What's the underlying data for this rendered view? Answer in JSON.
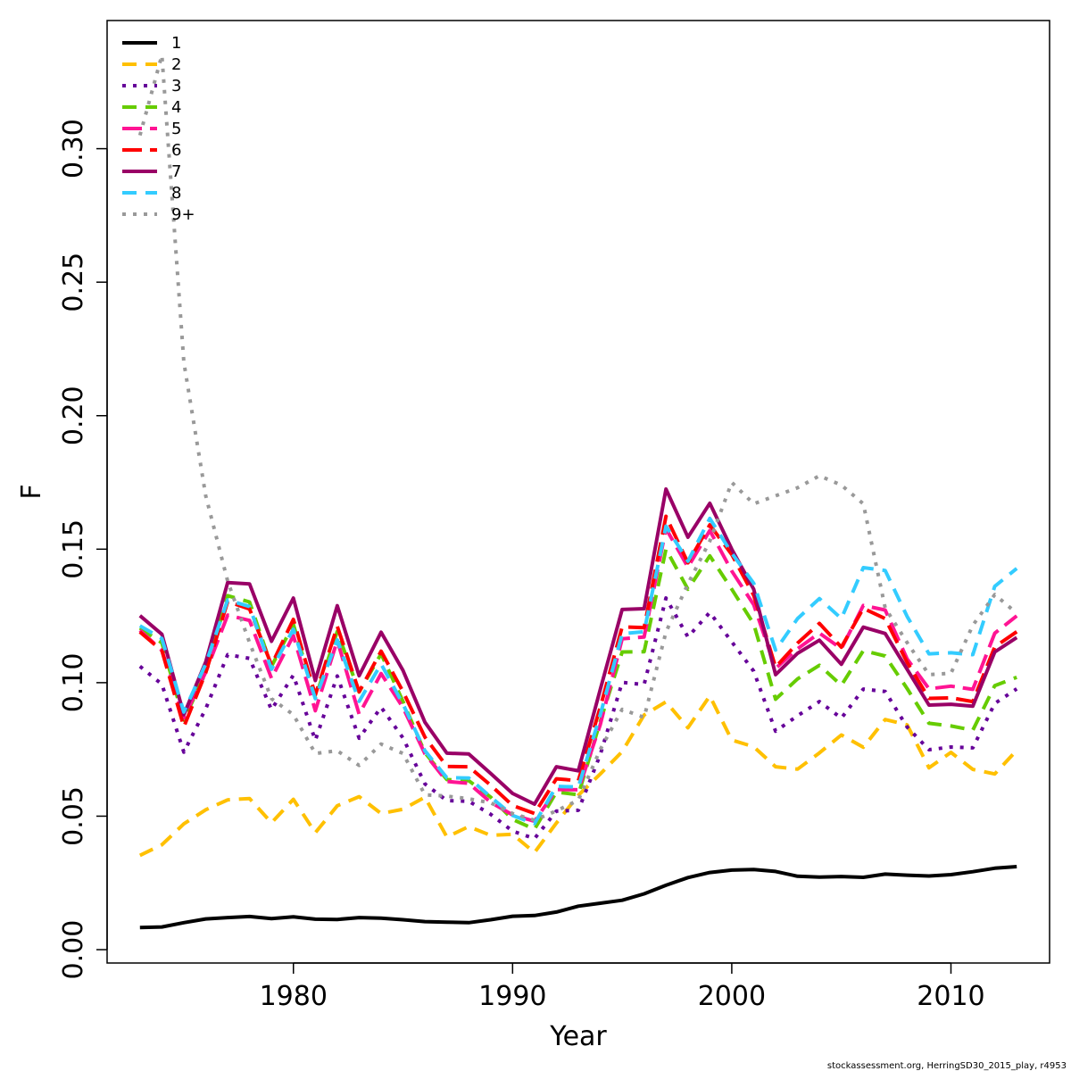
{
  "chart_data": {
    "type": "line",
    "xlabel": "Year",
    "ylabel": "F",
    "xlim": [
      1971.5,
      2014.5
    ],
    "ylim": [
      -0.005,
      0.348
    ],
    "x_ticks": [
      1980,
      1990,
      2000,
      2010
    ],
    "y_ticks": [
      0.0,
      0.05,
      0.1,
      0.15,
      0.2,
      0.25,
      0.3
    ],
    "y_tick_labels": [
      "0.00",
      "0.05",
      "0.10",
      "0.15",
      "0.20",
      "0.25",
      "0.30"
    ],
    "grid": false,
    "legend_position": "top-left",
    "caption": "stockassessment.org, HerringSD30_2015_play, r4953",
    "x": [
      1973,
      1974,
      1975,
      1976,
      1977,
      1978,
      1979,
      1980,
      1981,
      1982,
      1983,
      1984,
      1985,
      1986,
      1987,
      1988,
      1989,
      1990,
      1991,
      1992,
      1993,
      1994,
      1995,
      1996,
      1997,
      1998,
      1999,
      2000,
      2001,
      2002,
      2003,
      2004,
      2005,
      2006,
      2007,
      2008,
      2009,
      2010,
      2011,
      2012,
      2013
    ],
    "series": [
      {
        "name": "1",
        "color": "#000000",
        "dash": "solid",
        "width": 4,
        "values": [
          0.0083,
          0.0085,
          0.0101,
          0.0115,
          0.012,
          0.0124,
          0.0116,
          0.0123,
          0.0114,
          0.0113,
          0.012,
          0.0118,
          0.0112,
          0.0105,
          0.0103,
          0.0101,
          0.0112,
          0.0125,
          0.0128,
          0.0141,
          0.0163,
          0.0174,
          0.0185,
          0.0209,
          0.0241,
          0.027,
          0.0289,
          0.0298,
          0.03,
          0.0293,
          0.0275,
          0.0272,
          0.0274,
          0.0271,
          0.0283,
          0.0279,
          0.0276,
          0.0281,
          0.0292,
          0.0305,
          0.0311
        ]
      },
      {
        "name": "2",
        "color": "#FFC000",
        "dash": "dashed",
        "width": 4,
        "values": [
          0.0353,
          0.0393,
          0.0471,
          0.0524,
          0.0561,
          0.0566,
          0.0475,
          0.0563,
          0.0438,
          0.0539,
          0.0573,
          0.051,
          0.0526,
          0.0571,
          0.0422,
          0.0461,
          0.0428,
          0.0432,
          0.0364,
          0.0474,
          0.0578,
          0.0658,
          0.0742,
          0.0879,
          0.0928,
          0.0831,
          0.095,
          0.0785,
          0.076,
          0.0685,
          0.0676,
          0.0737,
          0.0804,
          0.0758,
          0.0862,
          0.0842,
          0.0681,
          0.0739,
          0.0675,
          0.0658,
          0.0747
        ]
      },
      {
        "name": "3",
        "color": "#660099",
        "dash": "dotted",
        "width": 4,
        "values": [
          0.1061,
          0.0994,
          0.074,
          0.0902,
          0.1105,
          0.1091,
          0.0899,
          0.1028,
          0.0784,
          0.1025,
          0.0792,
          0.0908,
          0.0793,
          0.0621,
          0.0558,
          0.0556,
          0.0507,
          0.0444,
          0.0416,
          0.0519,
          0.0522,
          0.0731,
          0.1001,
          0.0993,
          0.1317,
          0.1171,
          0.1263,
          0.1153,
          0.1043,
          0.0818,
          0.0876,
          0.0929,
          0.0867,
          0.0976,
          0.0967,
          0.0834,
          0.0749,
          0.0759,
          0.0756,
          0.0922,
          0.0977
        ]
      },
      {
        "name": "4",
        "color": "#66CC00",
        "dash": "dashed",
        "width": 4,
        "values": [
          0.1205,
          0.1149,
          0.086,
          0.1038,
          0.1326,
          0.1302,
          0.1061,
          0.1218,
          0.0942,
          0.1192,
          0.0965,
          0.1108,
          0.093,
          0.0738,
          0.0637,
          0.0633,
          0.0571,
          0.0488,
          0.0451,
          0.059,
          0.058,
          0.0855,
          0.1115,
          0.1116,
          0.15,
          0.135,
          0.1475,
          0.135,
          0.122,
          0.0938,
          0.1014,
          0.1065,
          0.099,
          0.112,
          0.11,
          0.0978,
          0.0848,
          0.0838,
          0.0822,
          0.0989,
          0.102
        ]
      },
      {
        "name": "5",
        "color": "#FF1493",
        "dash": "longdash",
        "width": 4,
        "values": [
          0.1196,
          0.1121,
          0.0869,
          0.1039,
          0.1253,
          0.1233,
          0.1016,
          0.1176,
          0.0895,
          0.1158,
          0.0882,
          0.1034,
          0.0907,
          0.0734,
          0.063,
          0.0623,
          0.0552,
          0.0505,
          0.0481,
          0.06,
          0.0599,
          0.0843,
          0.1164,
          0.1171,
          0.1577,
          0.1433,
          0.157,
          0.1418,
          0.1292,
          0.1053,
          0.1127,
          0.1186,
          0.1127,
          0.1289,
          0.1272,
          0.1089,
          0.0977,
          0.0987,
          0.0975,
          0.1185,
          0.125
        ]
      },
      {
        "name": "6",
        "color": "#FF0000",
        "dash": "longdash",
        "width": 4,
        "values": [
          0.119,
          0.112,
          0.0835,
          0.1037,
          0.1304,
          0.1276,
          0.1066,
          0.1237,
          0.0954,
          0.1211,
          0.0966,
          0.1118,
          0.0967,
          0.0796,
          0.0686,
          0.0685,
          0.0616,
          0.054,
          0.051,
          0.064,
          0.0633,
          0.0908,
          0.1209,
          0.1206,
          0.1623,
          0.1449,
          0.1591,
          0.148,
          0.1327,
          0.1058,
          0.1148,
          0.1222,
          0.1133,
          0.1278,
          0.124,
          0.1076,
          0.0941,
          0.0943,
          0.0929,
          0.1134,
          0.1191
        ]
      },
      {
        "name": "7",
        "color": "#990066",
        "dash": "solid",
        "width": 4,
        "values": [
          0.1251,
          0.1181,
          0.088,
          0.1078,
          0.1375,
          0.137,
          0.1155,
          0.1317,
          0.1008,
          0.1288,
          0.1026,
          0.1189,
          0.1046,
          0.0852,
          0.0736,
          0.0733,
          0.066,
          0.0585,
          0.0545,
          0.0685,
          0.067,
          0.0975,
          0.1274,
          0.1277,
          0.1725,
          0.1545,
          0.1672,
          0.15,
          0.135,
          0.103,
          0.111,
          0.1159,
          0.1069,
          0.1208,
          0.1184,
          0.105,
          0.0916,
          0.0919,
          0.0912,
          0.1115,
          0.1169
        ]
      },
      {
        "name": "8",
        "color": "#33CCFF",
        "dash": "dashed",
        "width": 4,
        "values": [
          0.1213,
          0.1165,
          0.089,
          0.107,
          0.131,
          0.1285,
          0.105,
          0.12,
          0.094,
          0.116,
          0.093,
          0.107,
          0.092,
          0.0745,
          0.0644,
          0.0643,
          0.0572,
          0.0503,
          0.0472,
          0.0612,
          0.0609,
          0.088,
          0.1183,
          0.1191,
          0.1586,
          0.1455,
          0.1615,
          0.1485,
          0.1372,
          0.1122,
          0.124,
          0.1315,
          0.124,
          0.1431,
          0.142,
          0.1248,
          0.1108,
          0.1112,
          0.1105,
          0.1361,
          0.1428
        ]
      },
      {
        "name": "9+",
        "color": "#999999",
        "dash": "dotted",
        "width": 4,
        "values": [
          0.305,
          0.335,
          0.22,
          0.17,
          0.138,
          0.115,
          0.094,
          0.088,
          0.0735,
          0.0745,
          0.069,
          0.077,
          0.0735,
          0.058,
          0.0575,
          0.0565,
          0.055,
          0.051,
          0.0485,
          0.052,
          0.056,
          0.075,
          0.09,
          0.087,
          0.119,
          0.137,
          0.153,
          0.175,
          0.167,
          0.17,
          0.173,
          0.1775,
          0.174,
          0.167,
          0.128,
          0.115,
          0.103,
          0.1035,
          0.1215,
          0.133,
          0.126
        ]
      }
    ]
  }
}
